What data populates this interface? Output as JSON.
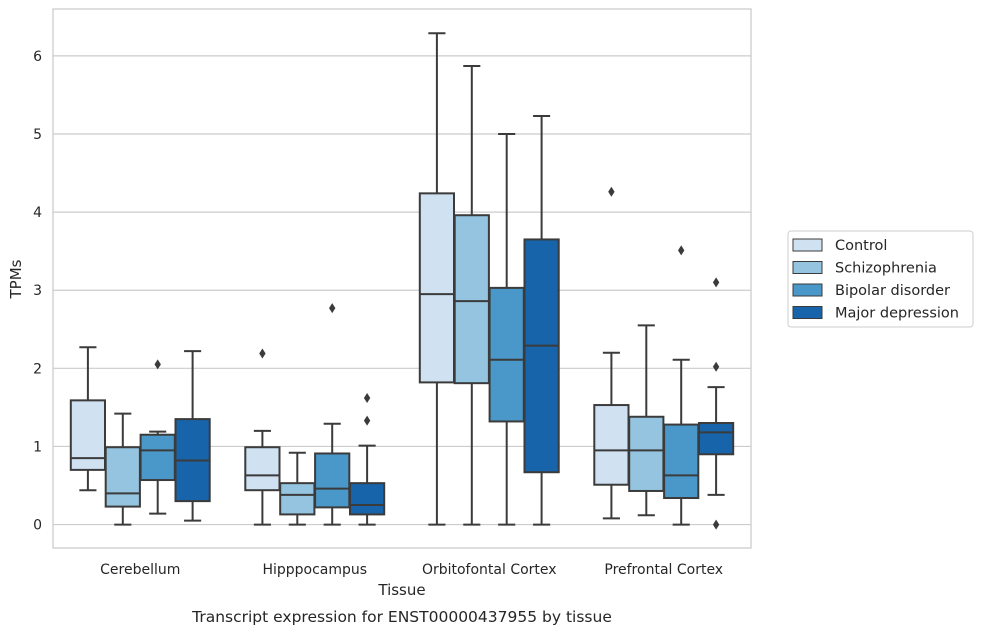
{
  "chart_data": {
    "type": "box",
    "title": "",
    "caption": "Transcript expression for ENST00000437955 by tissue",
    "xlabel": "Tissue",
    "ylabel": "TPMs",
    "ylim": [
      -0.3,
      6.6
    ],
    "yticks": [
      0,
      1,
      2,
      3,
      4,
      5,
      6
    ],
    "grid": "horizontal",
    "legend_position": "right",
    "categories": [
      "Cerebellum",
      "Hipppocampus",
      "Orbitofontal Cortex",
      "Prefrontal Cortex"
    ],
    "series": [
      {
        "name": "Control",
        "color": "#d0e1f2",
        "boxes": [
          {
            "whisker_low": 0.44,
            "q1": 0.7,
            "median": 0.85,
            "q3": 1.59,
            "whisker_high": 2.27,
            "outliers": []
          },
          {
            "whisker_low": 0.0,
            "q1": 0.44,
            "median": 0.63,
            "q3": 0.99,
            "whisker_high": 1.2,
            "outliers": [
              2.19
            ]
          },
          {
            "whisker_low": 0.0,
            "q1": 1.82,
            "median": 2.95,
            "q3": 4.24,
            "whisker_high": 6.29,
            "outliers": []
          },
          {
            "whisker_low": 0.08,
            "q1": 0.51,
            "median": 0.95,
            "q3": 1.53,
            "whisker_high": 2.2,
            "outliers": [
              4.26
            ]
          }
        ]
      },
      {
        "name": "Schizophrenia",
        "color": "#94c4df",
        "boxes": [
          {
            "whisker_low": 0.0,
            "q1": 0.23,
            "median": 0.4,
            "q3": 0.99,
            "whisker_high": 1.42,
            "outliers": []
          },
          {
            "whisker_low": 0.0,
            "q1": 0.13,
            "median": 0.38,
            "q3": 0.53,
            "whisker_high": 0.92,
            "outliers": []
          },
          {
            "whisker_low": 0.0,
            "q1": 1.81,
            "median": 2.86,
            "q3": 3.96,
            "whisker_high": 5.87,
            "outliers": []
          },
          {
            "whisker_low": 0.12,
            "q1": 0.43,
            "median": 0.95,
            "q3": 1.38,
            "whisker_high": 2.55,
            "outliers": []
          }
        ]
      },
      {
        "name": "Bipolar disorder",
        "color": "#4a98c9",
        "boxes": [
          {
            "whisker_low": 0.14,
            "q1": 0.57,
            "median": 0.95,
            "q3": 1.15,
            "whisker_high": 1.19,
            "outliers": [
              2.05
            ]
          },
          {
            "whisker_low": 0.0,
            "q1": 0.22,
            "median": 0.46,
            "q3": 0.91,
            "whisker_high": 1.29,
            "outliers": [
              2.77
            ]
          },
          {
            "whisker_low": 0.0,
            "q1": 1.32,
            "median": 2.11,
            "q3": 3.03,
            "whisker_high": 5.0,
            "outliers": []
          },
          {
            "whisker_low": 0.0,
            "q1": 0.34,
            "median": 0.63,
            "q3": 1.28,
            "whisker_high": 2.11,
            "outliers": [
              3.51
            ]
          }
        ]
      },
      {
        "name": "Major depression",
        "color": "#1764ab",
        "boxes": [
          {
            "whisker_low": 0.05,
            "q1": 0.3,
            "median": 0.82,
            "q3": 1.35,
            "whisker_high": 2.22,
            "outliers": []
          },
          {
            "whisker_low": 0.0,
            "q1": 0.13,
            "median": 0.25,
            "q3": 0.53,
            "whisker_high": 1.01,
            "outliers": [
              1.33,
              1.62
            ]
          },
          {
            "whisker_low": 0.0,
            "q1": 0.67,
            "median": 2.29,
            "q3": 3.65,
            "whisker_high": 5.23,
            "outliers": []
          },
          {
            "whisker_low": 0.38,
            "q1": 0.9,
            "median": 1.18,
            "q3": 1.3,
            "whisker_high": 1.76,
            "outliers": [
              0.0,
              2.02,
              3.1
            ]
          }
        ]
      }
    ]
  }
}
